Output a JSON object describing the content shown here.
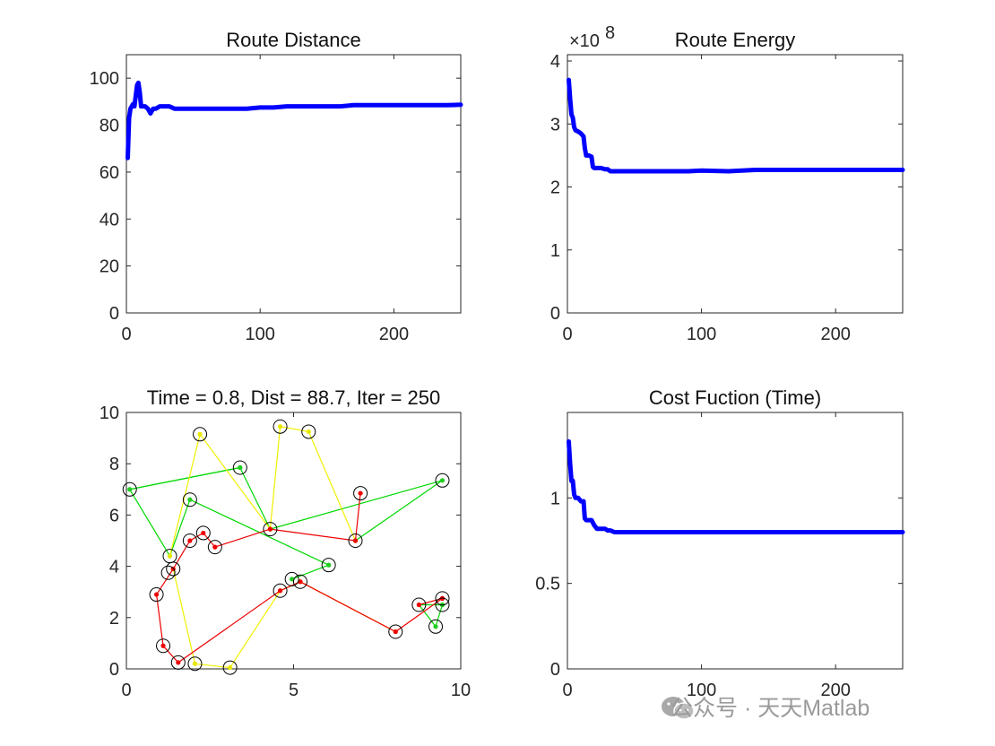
{
  "chart_data": [
    {
      "id": "p1",
      "type": "line",
      "title": "Route Distance",
      "xlim": [
        0,
        250
      ],
      "ylim": [
        0,
        110
      ],
      "xticks": [
        0,
        100,
        200
      ],
      "yticks": [
        0,
        20,
        40,
        60,
        80,
        100
      ],
      "xtick_labels": [
        "0",
        "100",
        "200"
      ],
      "ytick_labels": [
        "0",
        "20",
        "40",
        "60",
        "80",
        "100"
      ],
      "series": [
        {
          "color": "#0000ff",
          "x": [
            1,
            2,
            3,
            5,
            6,
            8,
            9,
            10,
            11,
            12,
            14,
            16,
            18,
            20,
            22,
            25,
            28,
            32,
            36,
            40,
            60,
            80,
            90,
            100,
            110,
            120,
            130,
            140,
            150,
            160,
            170,
            180,
            190,
            200,
            210,
            220,
            230,
            240,
            250
          ],
          "y": [
            66,
            83,
            87,
            89,
            88,
            97,
            98,
            94,
            88,
            88,
            88,
            87,
            85,
            87,
            87,
            88,
            88,
            88,
            87,
            87,
            87,
            87,
            87,
            87.5,
            87.5,
            88,
            88,
            88,
            88,
            88,
            88.5,
            88.5,
            88.5,
            88.5,
            88.5,
            88.5,
            88.5,
            88.5,
            88.7
          ]
        }
      ]
    },
    {
      "id": "p2",
      "type": "line",
      "title": "Route Energy",
      "exponent_label": "×10",
      "exponent_power": "8",
      "xlim": [
        0,
        250
      ],
      "ylim": [
        0,
        4.1
      ],
      "xticks": [
        0,
        100,
        200
      ],
      "yticks": [
        0,
        1,
        2,
        3,
        4
      ],
      "xtick_labels": [
        "0",
        "100",
        "200"
      ],
      "ytick_labels": [
        "0",
        "1",
        "2",
        "3",
        "4"
      ],
      "series": [
        {
          "color": "#0000ff",
          "x": [
            1,
            2,
            3,
            4,
            5,
            6,
            8,
            10,
            12,
            13,
            14,
            16,
            18,
            19,
            20,
            22,
            25,
            28,
            30,
            32,
            35,
            40,
            60,
            80,
            90,
            100,
            120,
            140,
            160,
            180,
            200,
            220,
            240,
            250
          ],
          "y": [
            3.7,
            3.4,
            3.15,
            3.1,
            2.95,
            2.9,
            2.88,
            2.85,
            2.8,
            2.62,
            2.5,
            2.5,
            2.48,
            2.32,
            2.3,
            2.3,
            2.3,
            2.28,
            2.28,
            2.25,
            2.25,
            2.25,
            2.25,
            2.25,
            2.25,
            2.26,
            2.25,
            2.27,
            2.27,
            2.27,
            2.27,
            2.27,
            2.27,
            2.27
          ]
        }
      ]
    },
    {
      "id": "p3",
      "type": "scatter",
      "title": "Time = 0.8, Dist = 88.7, Iter = 250",
      "xlim": [
        0,
        10
      ],
      "ylim": [
        0,
        10
      ],
      "xticks": [
        0,
        5,
        10
      ],
      "yticks": [
        0,
        2,
        4,
        6,
        8,
        10
      ],
      "xtick_labels": [
        "0",
        "5",
        "10"
      ],
      "ytick_labels": [
        "0",
        "2",
        "4",
        "6",
        "8",
        "10"
      ],
      "points": [
        [
          0.1,
          7.0
        ],
        [
          1.3,
          4.4
        ],
        [
          1.4,
          3.9
        ],
        [
          1.25,
          3.75
        ],
        [
          1.9,
          6.6
        ],
        [
          1.9,
          5.0
        ],
        [
          2.3,
          5.3
        ],
        [
          2.65,
          4.75
        ],
        [
          2.2,
          9.15
        ],
        [
          3.4,
          7.85
        ],
        [
          4.3,
          5.45
        ],
        [
          4.6,
          9.45
        ],
        [
          5.45,
          9.25
        ],
        [
          4.6,
          3.05
        ],
        [
          4.95,
          3.5
        ],
        [
          5.2,
          3.4
        ],
        [
          6.05,
          4.05
        ],
        [
          6.85,
          5.0
        ],
        [
          7.0,
          6.85
        ],
        [
          9.45,
          7.35
        ],
        [
          0.9,
          2.9
        ],
        [
          1.1,
          0.9
        ],
        [
          1.55,
          0.25
        ],
        [
          2.05,
          0.2
        ],
        [
          3.1,
          0.05
        ],
        [
          8.05,
          1.45
        ],
        [
          8.75,
          2.5
        ],
        [
          9.25,
          1.65
        ],
        [
          9.45,
          2.5
        ],
        [
          9.45,
          2.75
        ]
      ],
      "routes": [
        {
          "color": "#00d800",
          "marker": "#22cc22",
          "path": [
            [
              3.4,
              7.85
            ],
            [
              0.1,
              7.0
            ],
            [
              1.3,
              4.4
            ],
            [
              1.9,
              6.6
            ],
            [
              6.05,
              4.05
            ],
            [
              4.95,
              3.5
            ],
            [
              6.05,
              4.05
            ]
          ]
        },
        {
          "color": "#00d800",
          "marker": "#22cc22",
          "path": [
            [
              6.85,
              5.0
            ],
            [
              9.45,
              7.35
            ],
            [
              4.3,
              5.45
            ],
            [
              3.4,
              7.85
            ],
            [
              0.1,
              7.0
            ]
          ]
        },
        {
          "color": "#00d800",
          "marker": "#22cc22",
          "path": [
            [
              9.45,
              2.5
            ],
            [
              9.25,
              1.65
            ],
            [
              8.75,
              2.5
            ],
            [
              9.45,
              2.5
            ]
          ]
        },
        {
          "color": "#f0f000",
          "marker": "#e8e800",
          "path": [
            [
              1.3,
              4.4
            ],
            [
              2.2,
              9.15
            ],
            [
              4.3,
              5.45
            ],
            [
              4.6,
              9.45
            ],
            [
              5.45,
              9.25
            ],
            [
              6.85,
              5.0
            ]
          ]
        },
        {
          "color": "#f0f000",
          "marker": "#e8e800",
          "path": [
            [
              1.4,
              3.9
            ],
            [
              2.05,
              0.2
            ],
            [
              3.1,
              0.05
            ],
            [
              4.6,
              3.05
            ],
            [
              5.2,
              3.4
            ],
            [
              8.05,
              1.45
            ]
          ]
        },
        {
          "color": "#ee0000",
          "marker": "#ee0000",
          "path": [
            [
              9.45,
              2.75
            ],
            [
              8.75,
              2.5
            ],
            [
              9.45,
              2.75
            ],
            [
              8.05,
              1.45
            ],
            [
              5.2,
              3.4
            ],
            [
              4.6,
              3.05
            ],
            [
              1.55,
              0.25
            ],
            [
              1.1,
              0.9
            ],
            [
              0.9,
              2.9
            ],
            [
              1.4,
              3.9
            ],
            [
              1.9,
              5.0
            ],
            [
              2.3,
              5.3
            ],
            [
              2.65,
              4.75
            ],
            [
              4.3,
              5.45
            ],
            [
              6.85,
              5.0
            ],
            [
              7.0,
              6.85
            ]
          ]
        }
      ]
    },
    {
      "id": "p4",
      "type": "line",
      "title": "Cost Fuction (Time)",
      "xlim": [
        0,
        250
      ],
      "ylim": [
        0,
        1.5
      ],
      "xticks": [
        0,
        100,
        200
      ],
      "yticks": [
        0,
        0.5,
        1
      ],
      "xtick_labels": [
        "0",
        "100",
        "200"
      ],
      "ytick_labels": [
        "0",
        "0.5",
        "1"
      ],
      "series": [
        {
          "color": "#0000ff",
          "x": [
            1,
            2,
            3,
            4,
            5,
            6,
            8,
            10,
            12,
            13,
            14,
            16,
            18,
            20,
            22,
            25,
            28,
            30,
            32,
            35,
            40,
            60,
            100,
            150,
            200,
            250
          ],
          "y": [
            1.33,
            1.2,
            1.1,
            1.1,
            1.02,
            1.0,
            1.0,
            0.98,
            0.98,
            0.88,
            0.87,
            0.87,
            0.87,
            0.84,
            0.82,
            0.82,
            0.82,
            0.81,
            0.81,
            0.8,
            0.8,
            0.8,
            0.8,
            0.8,
            0.8,
            0.8
          ]
        }
      ]
    }
  ],
  "watermark": {
    "text": "公众号 · 天天Matlab",
    "icon": "wechat-icon"
  }
}
